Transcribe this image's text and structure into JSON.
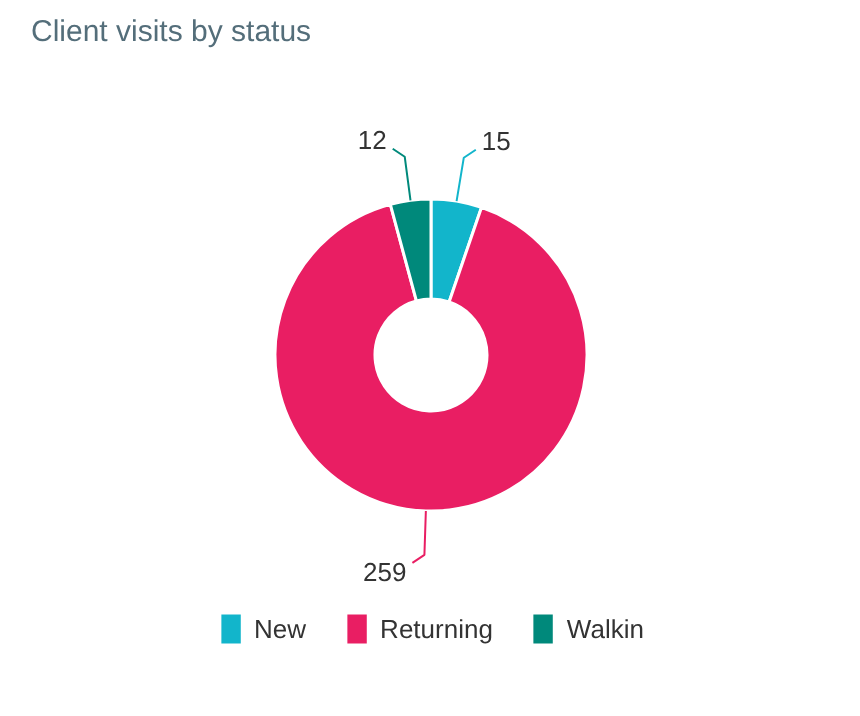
{
  "chart_data": {
    "type": "donut",
    "title": "Client visits by status",
    "categories": [
      "New",
      "Returning",
      "Walkin"
    ],
    "values": [
      15,
      259,
      12
    ],
    "colors": [
      "#12b5cb",
      "#e91e63",
      "#00897b"
    ],
    "data_labels": true,
    "legend": "bottom"
  }
}
